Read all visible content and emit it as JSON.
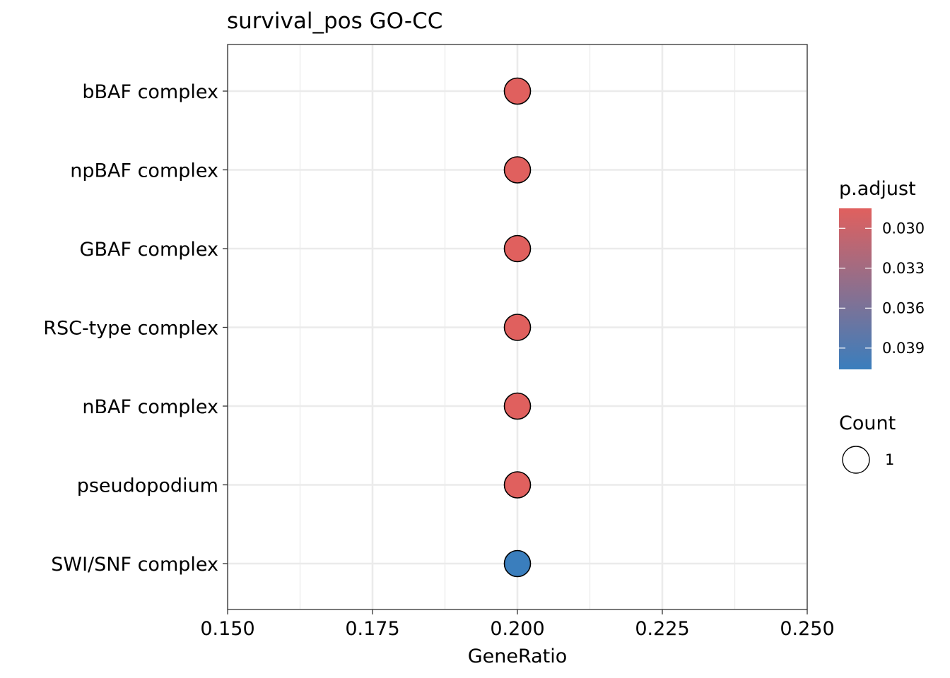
{
  "chart_data": {
    "type": "scatter",
    "title": "survival_pos GO-CC",
    "xlabel": "GeneRatio",
    "ylabel": "",
    "xlim": [
      0.15,
      0.25
    ],
    "x_ticks": [
      "0.150",
      "0.175",
      "0.200",
      "0.225",
      "0.250"
    ],
    "x_tick_values": [
      0.15,
      0.175,
      0.2,
      0.225,
      0.25
    ],
    "grid": true,
    "categories": [
      "bBAF complex",
      "npBAF complex",
      "GBAF complex",
      "RSC-type complex",
      "nBAF complex",
      "pseudopodium",
      "SWI/SNF complex"
    ],
    "points": [
      {
        "term": "bBAF complex",
        "gene_ratio": 0.2,
        "p_adjust": 0.0285,
        "count": 1
      },
      {
        "term": "npBAF complex",
        "gene_ratio": 0.2,
        "p_adjust": 0.0285,
        "count": 1
      },
      {
        "term": "GBAF complex",
        "gene_ratio": 0.2,
        "p_adjust": 0.0285,
        "count": 1
      },
      {
        "term": "RSC-type complex",
        "gene_ratio": 0.2,
        "p_adjust": 0.0285,
        "count": 1
      },
      {
        "term": "nBAF complex",
        "gene_ratio": 0.2,
        "p_adjust": 0.0285,
        "count": 1
      },
      {
        "term": "pseudopodium",
        "gene_ratio": 0.2,
        "p_adjust": 0.0285,
        "count": 1
      },
      {
        "term": "SWI/SNF complex",
        "gene_ratio": 0.2,
        "p_adjust": 0.0406,
        "count": 1
      }
    ],
    "color_legend": {
      "title": "p.adjust",
      "range": [
        0.0285,
        0.0406
      ],
      "ticks": [
        0.03,
        0.033,
        0.036,
        0.039
      ],
      "tick_labels": [
        "0.030",
        "0.033",
        "0.036",
        "0.039"
      ],
      "low_color": "#E0605E",
      "high_color": "#3A7EBD"
    },
    "size_legend": {
      "title": "Count",
      "values": [
        1
      ],
      "labels": [
        "1"
      ]
    },
    "legend_position": "right"
  }
}
